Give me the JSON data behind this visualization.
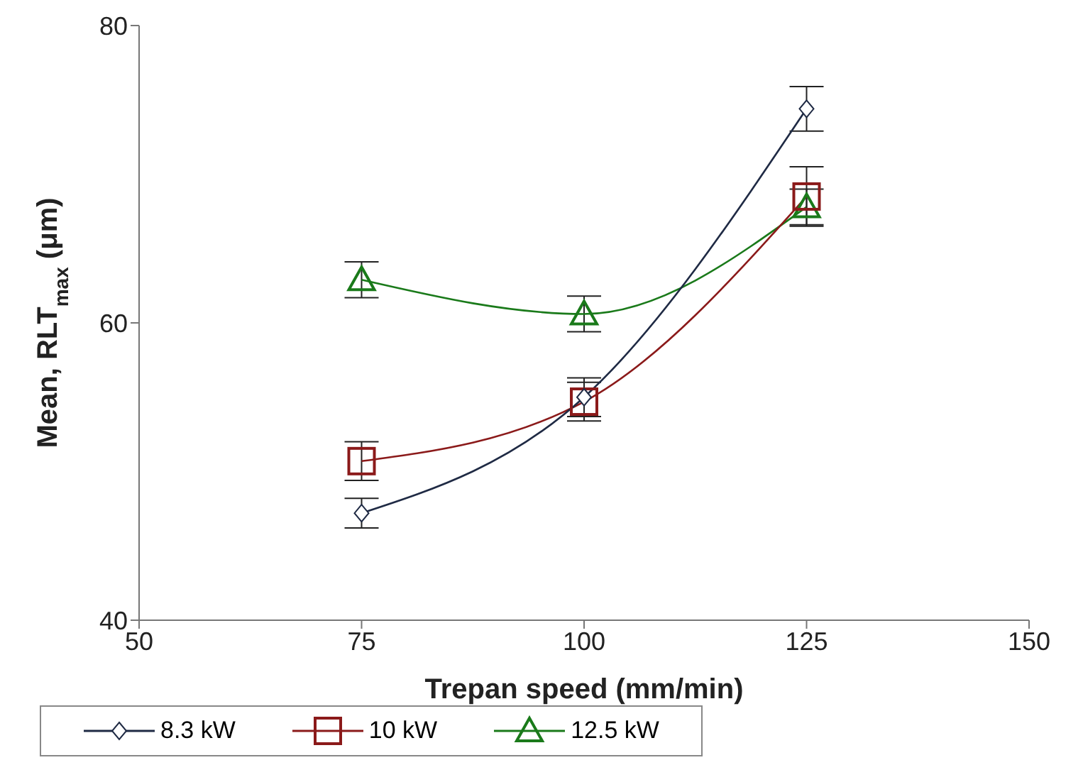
{
  "chart_data": {
    "type": "line",
    "xlabel": "Trepan speed (mm/min)",
    "ylabel": "Mean, RLT$_{max}$ (μm)",
    "x": [
      75,
      100,
      125
    ],
    "series": [
      {
        "name": "8.3 kW",
        "color": "#1f2a44",
        "marker": "diamond",
        "values": [
          47.2,
          55.0,
          74.4
        ],
        "errors": [
          1.0,
          1.3,
          1.5
        ]
      },
      {
        "name": "10 kW",
        "color": "#8b1a1a",
        "marker": "square",
        "values": [
          50.7,
          54.7,
          68.5
        ],
        "errors": [
          1.3,
          1.3,
          2.0
        ]
      },
      {
        "name": "12.5 kW",
        "color": "#1a7a1a",
        "marker": "triangle",
        "values": [
          62.9,
          60.6,
          67.8
        ],
        "errors": [
          1.2,
          1.2,
          1.2
        ]
      }
    ],
    "xlim": [
      50,
      150
    ],
    "xticks": [
      50,
      75,
      100,
      125,
      150
    ],
    "ylim": [
      40,
      80
    ],
    "yticks": [
      40,
      60,
      80
    ],
    "grid": false,
    "legend": "bottom"
  }
}
